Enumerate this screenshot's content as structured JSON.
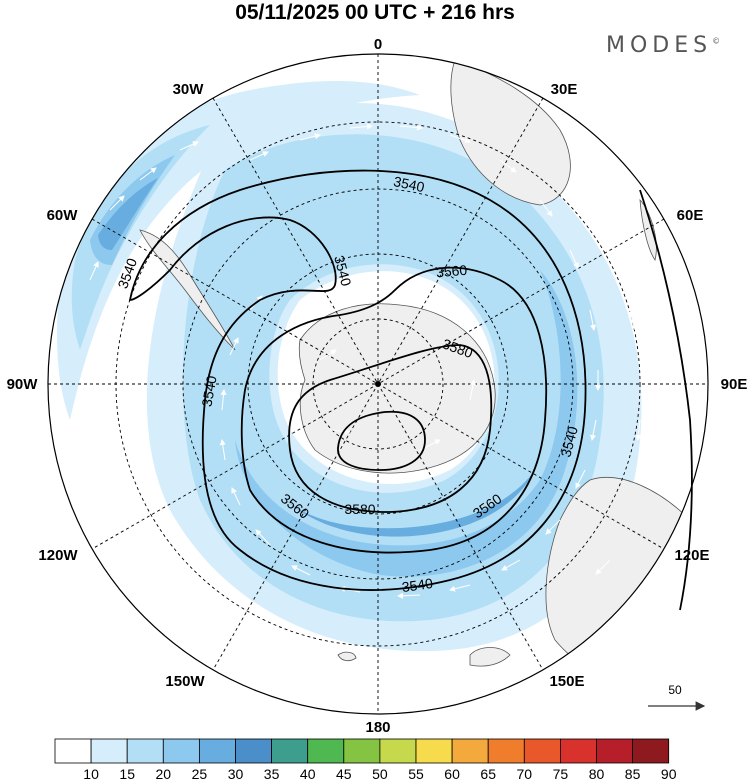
{
  "header": {
    "title": "05/11/2025  00 UTC  + 216 hrs",
    "brand": "MODES",
    "brand_mark": "©"
  },
  "map": {
    "projection": "south-polar-stereographic",
    "longitude_labels": {
      "0": "0",
      "30E": "30E",
      "60E": "60E",
      "90E": "90E",
      "120E": "120E",
      "150E": "150E",
      "180": "180",
      "150W": "150W",
      "120W": "120W",
      "90W": "90W",
      "60W": "60W",
      "30W": "30W"
    },
    "contour_labels": {
      "c3540_a": "3540",
      "c3540_b": "3540",
      "c3540_c": "3540",
      "c3540_d": "3540",
      "c3540_e": "3540",
      "c3540_f": "3540",
      "c3560_a": "3560",
      "c3560_b": "3560",
      "c3560_c": "3560",
      "c3580_a": "3580",
      "c3580_b": "3580"
    },
    "reference_vector": "50",
    "colors": {
      "land": "#efefef",
      "coast": "#555555",
      "grid": "#000000",
      "contour": "#000000",
      "vector": "#ffffff"
    }
  },
  "colorbar": {
    "labels": [
      "10",
      "15",
      "20",
      "25",
      "30",
      "35",
      "40",
      "45",
      "50",
      "55",
      "60",
      "65",
      "70",
      "75",
      "80",
      "85",
      "90"
    ],
    "colors": [
      "#ffffff",
      "#d6eefb",
      "#b3dff6",
      "#8dc8ee",
      "#68addf",
      "#4a8fc9",
      "#3e9e8e",
      "#4fb850",
      "#85c443",
      "#c6d84b",
      "#f6dc4d",
      "#f4a93c",
      "#ef7d2c",
      "#e8582b",
      "#d9322c",
      "#b61f2a",
      "#8e1a1f"
    ]
  }
}
